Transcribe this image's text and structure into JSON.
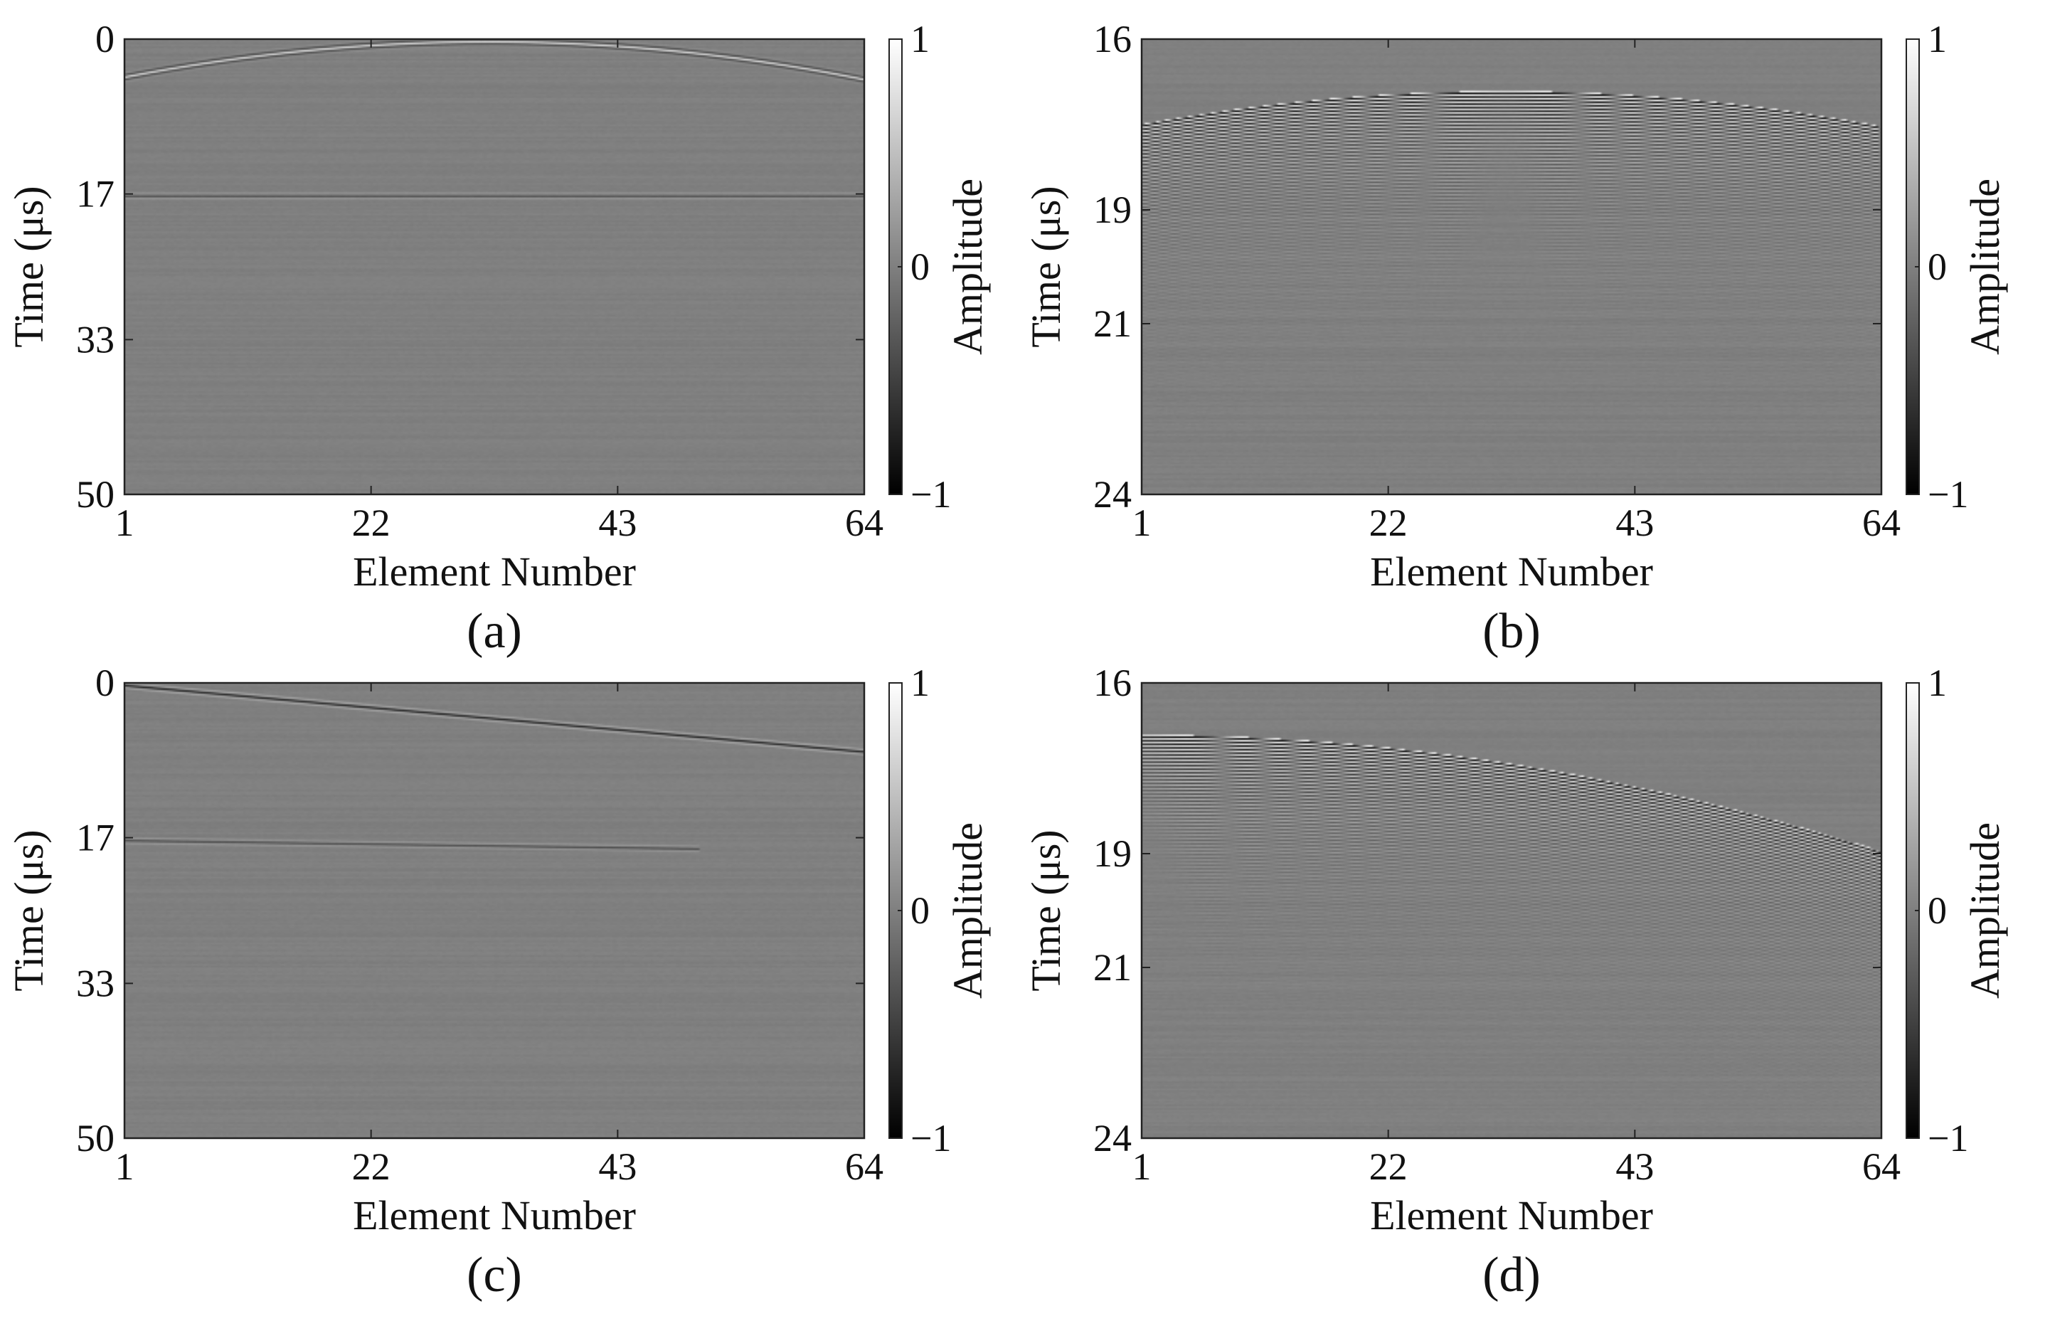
{
  "chart_data": [
    {
      "id": "a",
      "type": "heatmap",
      "panel_label": "(a)",
      "title": "",
      "xlabel": "Element Number",
      "ylabel": "Time (μs)",
      "x_ticks": [
        1,
        22,
        43,
        64
      ],
      "y_ticks": [
        0,
        17,
        33,
        50
      ],
      "xlim": [
        1,
        64
      ],
      "ylim": [
        0,
        50
      ],
      "y_reversed": true,
      "colorbar": {
        "label": "Amplitude",
        "range": [
          -1,
          1
        ],
        "ticks": [
          1,
          0,
          -1
        ],
        "tick_labels": [
          "1",
          "0",
          "−1"
        ],
        "colormap": "gray"
      },
      "features": [
        {
          "kind": "arc",
          "description_values": {
            "peak_element": 32,
            "peak_time": 0.2,
            "edge_time": 4.2,
            "edges": [
              1,
              64
            ],
            "amplitude": 0.7
          }
        },
        {
          "kind": "line",
          "description_values": {
            "time_start": 17.2,
            "time_end": 17.2,
            "amplitude": -0.4
          }
        }
      ]
    },
    {
      "id": "b",
      "type": "heatmap",
      "panel_label": "(b)",
      "title": "",
      "xlabel": "Element Number",
      "ylabel": "Time (μs)",
      "x_ticks": [
        1,
        22,
        43,
        64
      ],
      "y_ticks": [
        16,
        19,
        21,
        24
      ],
      "xlim": [
        1,
        64
      ],
      "ylim": [
        16,
        24
      ],
      "y_reversed": true,
      "colorbar": {
        "label": "Amplitude",
        "range": [
          -1,
          1
        ],
        "ticks": [
          1,
          0,
          -1
        ],
        "tick_labels": [
          "1",
          "0",
          "−1"
        ],
        "colormap": "gray"
      },
      "features": [
        {
          "kind": "wavefront",
          "description_values": {
            "peak_element": 32,
            "arrival_at_peak": 16.95,
            "arrival_at_edges": 17.55,
            "edges": [
              1,
              64
            ],
            "decay_span": 4.5
          }
        }
      ]
    },
    {
      "id": "c",
      "type": "heatmap",
      "panel_label": "(c)",
      "title": "",
      "xlabel": "Element Number",
      "ylabel": "Time (μs)",
      "x_ticks": [
        1,
        22,
        43,
        64
      ],
      "y_ticks": [
        0,
        17,
        33,
        50
      ],
      "xlim": [
        1,
        64
      ],
      "ylim": [
        0,
        50
      ],
      "y_reversed": true,
      "colorbar": {
        "label": "Amplitude",
        "range": [
          -1,
          1
        ],
        "ticks": [
          1,
          0,
          -1
        ],
        "tick_labels": [
          "1",
          "0",
          "−1"
        ],
        "colormap": "gray"
      },
      "features": [
        {
          "kind": "line",
          "description_values": {
            "element_start": 1,
            "time_start": 0.2,
            "element_end": 64,
            "time_end": 7.5,
            "amplitude": -0.7
          }
        },
        {
          "kind": "line",
          "description_values": {
            "element_start": 1,
            "time_start": 17.3,
            "element_end": 50,
            "time_end": 18.2,
            "amplitude": -0.4
          }
        }
      ]
    },
    {
      "id": "d",
      "type": "heatmap",
      "panel_label": "(d)",
      "title": "",
      "xlabel": "Element Number",
      "ylabel": "Time (μs)",
      "x_ticks": [
        1,
        22,
        43,
        64
      ],
      "y_ticks": [
        16,
        19,
        21,
        24
      ],
      "xlim": [
        1,
        64
      ],
      "ylim": [
        16,
        24
      ],
      "y_reversed": true,
      "colorbar": {
        "label": "Amplitude",
        "range": [
          -1,
          1
        ],
        "ticks": [
          1,
          0,
          -1
        ],
        "tick_labels": [
          "1",
          "0",
          "−1"
        ],
        "colormap": "gray"
      },
      "features": [
        {
          "kind": "wavefront",
          "description_values": {
            "start_element": 1,
            "arrival_at_start": 16.95,
            "end_element": 64,
            "arrival_at_end": 19.0,
            "decay_span": 4.5
          }
        }
      ]
    }
  ]
}
